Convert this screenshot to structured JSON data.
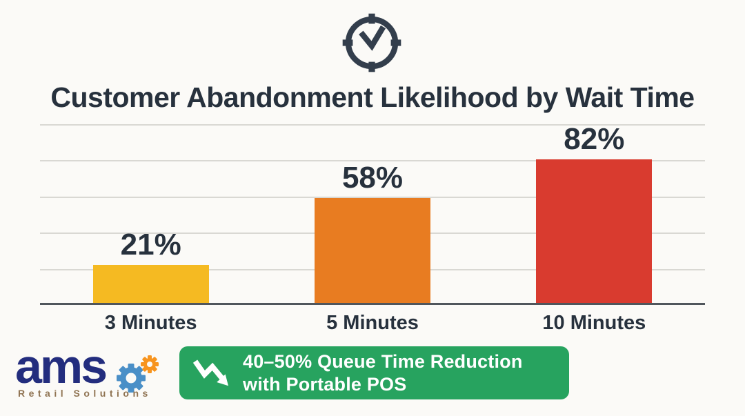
{
  "header": {
    "icon": "clock",
    "title": "Customer Abandonment Likelihood by Wait Time"
  },
  "chart_data": {
    "type": "bar",
    "title": "Customer Abandonment Likelihood by Wait Time",
    "categories": [
      "3 Minutes",
      "5 Minutes",
      "10 Minutes"
    ],
    "values": [
      21,
      58,
      82
    ],
    "value_labels": [
      "21%",
      "58%",
      "82%"
    ],
    "bar_colors": [
      "#f5ba22",
      "#e87c21",
      "#d93b2f"
    ],
    "xlabel": "",
    "ylabel": "",
    "ylim": [
      0,
      100
    ],
    "gridline_values": [
      0,
      20,
      40,
      60,
      80,
      100
    ],
    "grid": true,
    "legend": "none",
    "colors": {
      "background": "#fbfaf7",
      "text": "#27313d",
      "gridline": "#d9d8d3",
      "baseline": "#50565c"
    }
  },
  "banner": {
    "line1": "40–50% Queue Time Reduction",
    "line2": "with Portable POS",
    "icon": "trend-down-arrow",
    "bg_color": "#27a35f",
    "text_color": "#ffffff"
  },
  "logo": {
    "wordmark": "ams",
    "tagline": "Retail Solutions",
    "wordmark_color": "#232d7e",
    "tagline_color": "#8f7352",
    "gear_large_color": "#4a8fc7",
    "gear_small_color": "#f7941e"
  }
}
